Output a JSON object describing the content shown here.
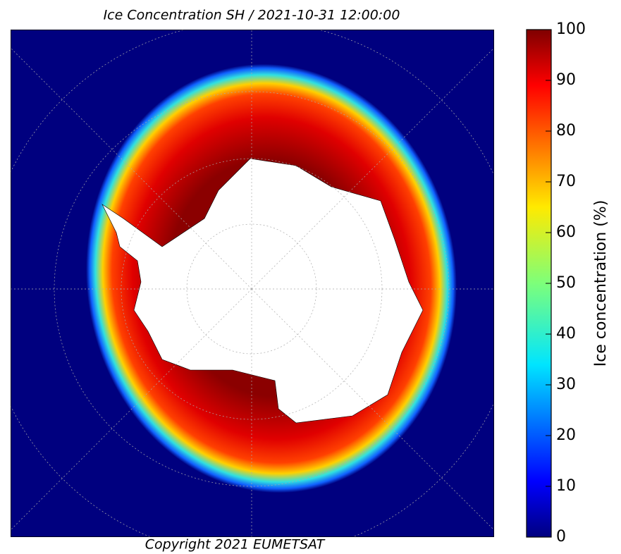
{
  "title": "Ice Concentration SH / 2021-10-31 12:00:00",
  "copyright": "Copyright 2021 EUMETSAT",
  "colorbar": {
    "label": "Ice concentration (%)",
    "colormap": "jet",
    "lim": [
      0,
      100
    ],
    "ticks": [
      0,
      10,
      20,
      30,
      40,
      50,
      60,
      70,
      80,
      90,
      100
    ]
  }
}
